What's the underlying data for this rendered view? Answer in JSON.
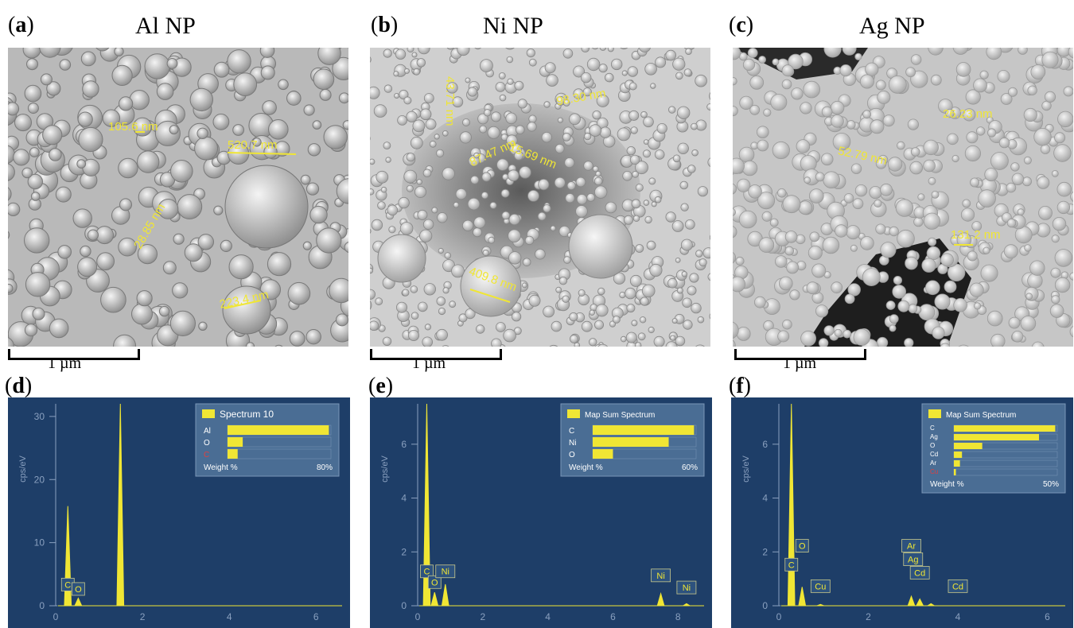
{
  "panels": [
    {
      "label": "(a)",
      "label_bold": "a",
      "title": "Al NP",
      "scalebar": "1 µm",
      "measurements": [
        "105.6 nm",
        "520.7 nm",
        "28.85 nm",
        "223.4 nm"
      ]
    },
    {
      "label": "(b)",
      "label_bold": "b",
      "title": "Ni NP",
      "scalebar": "1 µm",
      "measurements": [
        "43.71 nm",
        "98.30 nm",
        "87.47 nm",
        "15.69 nm",
        "409.8 nm"
      ]
    },
    {
      "label": "(c)",
      "label_bold": "c",
      "title": "Ag NP",
      "scalebar": "1 µm",
      "measurements": [
        "26.23 nm",
        "52.79 nm",
        "131.2 nm"
      ]
    }
  ],
  "spectra": [
    {
      "label_bold": "d",
      "ylabel": "cps/eV",
      "legend_title": "Spectrum 10",
      "yticks": [
        "30",
        "20",
        "10",
        "0"
      ],
      "xticks": [
        "0",
        "2",
        "4",
        "6"
      ],
      "inset_rows": [
        {
          "el": "Al",
          "v": 80
        },
        {
          "el": "O",
          "v": 12
        },
        {
          "el": "C",
          "v": 8
        }
      ],
      "inset_footer": "Weight %",
      "inset_max": "80%",
      "peaks_labels": [
        "C",
        "O"
      ]
    },
    {
      "label_bold": "e",
      "ylabel": "cps/eV",
      "legend_title": "Map Sum Spectrum",
      "yticks": [
        "6",
        "4",
        "2",
        "0"
      ],
      "xticks": [
        "0",
        "2",
        "4",
        "6",
        "8"
      ],
      "inset_rows": [
        {
          "el": "C",
          "v": 60
        },
        {
          "el": "Ni",
          "v": 45
        },
        {
          "el": "O",
          "v": 12
        }
      ],
      "inset_footer": "Weight %",
      "inset_max": "60%",
      "peaks_labels": [
        "C",
        "O",
        "Ni",
        "Ni",
        "Ni"
      ]
    },
    {
      "label_bold": "f",
      "ylabel": "cps/eV",
      "legend_title": "Map Sum Spectrum",
      "yticks": [
        "6",
        "4",
        "2",
        "0"
      ],
      "xticks": [
        "0",
        "2",
        "4",
        "6"
      ],
      "inset_rows": [
        {
          "el": "C",
          "v": 50
        },
        {
          "el": "Ag",
          "v": 42
        },
        {
          "el": "O",
          "v": 14
        },
        {
          "el": "Cd",
          "v": 4
        },
        {
          "el": "Ar",
          "v": 3
        },
        {
          "el": "Cu",
          "v": 1
        }
      ],
      "inset_footer": "Weight %",
      "inset_max": "50%",
      "peaks_labels": [
        "C",
        "O",
        "Cu",
        "Ar",
        "Ag",
        "Cd",
        "Cd"
      ]
    }
  ],
  "chart_data": [
    {
      "type": "bar",
      "title": "Spectrum 10",
      "categories": [
        "Al",
        "O",
        "C"
      ],
      "values": [
        80,
        12,
        8
      ],
      "xlabel": "Weight %"
    },
    {
      "type": "bar",
      "title": "Map Sum Spectrum",
      "categories": [
        "C",
        "Ni",
        "O"
      ],
      "values": [
        60,
        45,
        12
      ],
      "xlabel": "Weight %"
    },
    {
      "type": "bar",
      "title": "Map Sum Spectrum",
      "categories": [
        "C",
        "Ag",
        "O",
        "Cd",
        "Ar",
        "Cu"
      ],
      "values": [
        50,
        42,
        14,
        4,
        3,
        1
      ],
      "xlabel": "Weight %"
    }
  ]
}
